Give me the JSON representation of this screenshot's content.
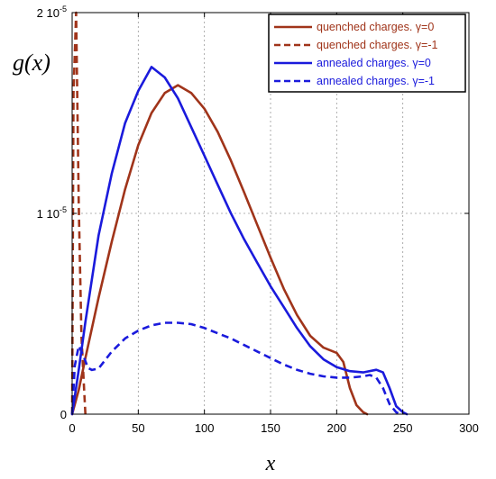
{
  "chart_data": {
    "type": "line",
    "xlabel": "x",
    "ylabel": "g(x)",
    "xlim": [
      0,
      300
    ],
    "ylim": [
      0,
      2e-05
    ],
    "grid": true,
    "legend_position": "top-right",
    "x_ticks": [
      {
        "value": 0,
        "label": "0"
      },
      {
        "value": 50,
        "label": "50"
      },
      {
        "value": 100,
        "label": "100"
      },
      {
        "value": 150,
        "label": "150"
      },
      {
        "value": 200,
        "label": "200"
      },
      {
        "value": 250,
        "label": "250"
      },
      {
        "value": 300,
        "label": "300"
      }
    ],
    "y_ticks": [
      {
        "value": 0,
        "label": "0"
      },
      {
        "value": 1e-05,
        "label": "1 10",
        "sup": "-5"
      },
      {
        "value": 2e-05,
        "label": "2 10",
        "sup": "-5"
      }
    ],
    "series": [
      {
        "name": "quenched charges. γ=0",
        "color": "#a0341a",
        "dash": "solid",
        "points": [
          [
            0,
            0
          ],
          [
            5,
            1.2e-06
          ],
          [
            10,
            2.8e-06
          ],
          [
            20,
            5.8e-06
          ],
          [
            30,
            8.6e-06
          ],
          [
            40,
            1.12e-05
          ],
          [
            50,
            1.34e-05
          ],
          [
            60,
            1.5e-05
          ],
          [
            70,
            1.5995e-05
          ],
          [
            80,
            1.6385e-05
          ],
          [
            90,
            1.6e-05
          ],
          [
            100,
            1.521e-05
          ],
          [
            110,
            1.4066e-05
          ],
          [
            120,
            1.2636e-05
          ],
          [
            130,
            1.105e-05
          ],
          [
            140,
            9.425e-06
          ],
          [
            150,
            7.8e-06
          ],
          [
            160,
            6.24e-06
          ],
          [
            170,
            4.94e-06
          ],
          [
            180,
            3.9e-06
          ],
          [
            190,
            3.315e-06
          ],
          [
            200,
            3.055e-06
          ],
          [
            205,
            2.6e-06
          ],
          [
            210,
            1.3e-06
          ],
          [
            215,
            4.5e-07
          ],
          [
            220,
            1e-07
          ],
          [
            223,
            0
          ]
        ]
      },
      {
        "name": "quenched charges. γ=-1",
        "color": "#a0341a",
        "dash": "dashed",
        "points": [
          [
            0,
            0
          ],
          [
            1,
            1.6e-05
          ],
          [
            3,
            2e-05
          ],
          [
            5,
            1.05e-05
          ],
          [
            7,
            3.9e-06
          ],
          [
            9,
            1.3e-06
          ],
          [
            10,
            0
          ]
        ]
      },
      {
        "name": "annealed charges. γ=0",
        "color": "#1a1adc",
        "dash": "solid",
        "points": [
          [
            0,
            0
          ],
          [
            5,
            2.2e-06
          ],
          [
            10,
            4.6e-06
          ],
          [
            20,
            8.9e-06
          ],
          [
            30,
            1.2e-05
          ],
          [
            40,
            1.45e-05
          ],
          [
            50,
            1.61e-05
          ],
          [
            60,
            1.729e-05
          ],
          [
            70,
            1.677e-05
          ],
          [
            80,
            1.573e-05
          ],
          [
            90,
            1.43e-05
          ],
          [
            100,
            1.287e-05
          ],
          [
            110,
            1.144e-05
          ],
          [
            120,
            1.001e-05
          ],
          [
            130,
            8.71e-06
          ],
          [
            140,
            7.54e-06
          ],
          [
            150,
            6.37e-06
          ],
          [
            160,
            5.33e-06
          ],
          [
            170,
            4.29e-06
          ],
          [
            180,
            3.38e-06
          ],
          [
            190,
            2.73e-06
          ],
          [
            200,
            2.34e-06
          ],
          [
            210,
            2.145e-06
          ],
          [
            220,
            2.08e-06
          ],
          [
            230,
            2.21e-06
          ],
          [
            235,
            2.08e-06
          ],
          [
            240,
            1.3e-06
          ],
          [
            245,
            4e-07
          ],
          [
            250,
            1e-07
          ],
          [
            253,
            0
          ]
        ]
      },
      {
        "name": "annealed charges. γ=-1",
        "color": "#1a1adc",
        "dash": "dashed",
        "points": [
          [
            0,
            0
          ],
          [
            2,
            2.4e-06
          ],
          [
            5,
            3.4e-06
          ],
          [
            8,
            3e-06
          ],
          [
            12,
            2.3e-06
          ],
          [
            15,
            2.2e-06
          ],
          [
            20,
            2.275e-06
          ],
          [
            30,
            3.12e-06
          ],
          [
            40,
            3.77e-06
          ],
          [
            50,
            4.16e-06
          ],
          [
            60,
            4.42e-06
          ],
          [
            70,
            4.55e-06
          ],
          [
            80,
            4.55e-06
          ],
          [
            90,
            4.485e-06
          ],
          [
            100,
            4.29e-06
          ],
          [
            110,
            4.03e-06
          ],
          [
            120,
            3.77e-06
          ],
          [
            130,
            3.445e-06
          ],
          [
            140,
            3.12e-06
          ],
          [
            150,
            2.795e-06
          ],
          [
            160,
            2.47e-06
          ],
          [
            170,
            2.21e-06
          ],
          [
            180,
            2.015e-06
          ],
          [
            190,
            1.885e-06
          ],
          [
            200,
            1.82e-06
          ],
          [
            210,
            1.82e-06
          ],
          [
            220,
            1.885e-06
          ],
          [
            225,
            1.95e-06
          ],
          [
            230,
            1.82e-06
          ],
          [
            235,
            1.3e-06
          ],
          [
            240,
            5e-07
          ],
          [
            245,
            1e-07
          ],
          [
            248,
            0
          ]
        ]
      }
    ]
  }
}
